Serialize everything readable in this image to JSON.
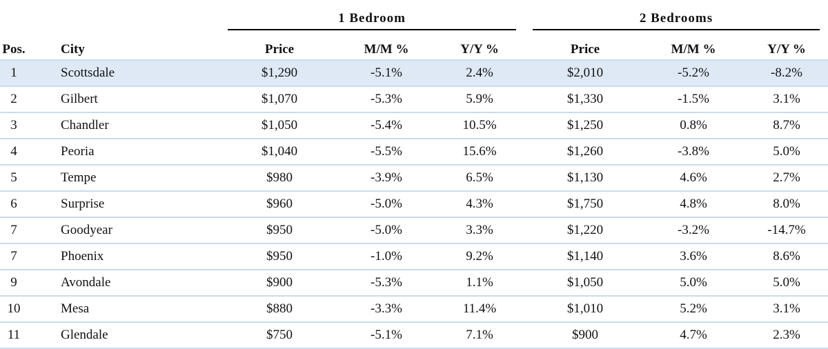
{
  "table": {
    "groups": [
      "1 Bedroom",
      "2 Bedrooms"
    ],
    "columns": [
      "Pos.",
      "City",
      "Price",
      "M/M %",
      "Y/Y %",
      "Price",
      "M/M %",
      "Y/Y %"
    ],
    "rows": [
      [
        "1",
        "Scottsdale",
        "$1,290",
        "-5.1%",
        "2.4%",
        "$2,010",
        "-5.2%",
        "-8.2%"
      ],
      [
        "2",
        "Gilbert",
        "$1,070",
        "-5.3%",
        "5.9%",
        "$1,330",
        "-1.5%",
        "3.1%"
      ],
      [
        "3",
        "Chandler",
        "$1,050",
        "-5.4%",
        "10.5%",
        "$1,250",
        "0.8%",
        "8.7%"
      ],
      [
        "4",
        "Peoria",
        "$1,040",
        "-5.5%",
        "15.6%",
        "$1,260",
        "-3.8%",
        "5.0%"
      ],
      [
        "5",
        "Tempe",
        "$980",
        "-3.9%",
        "6.5%",
        "$1,130",
        "4.6%",
        "2.7%"
      ],
      [
        "6",
        "Surprise",
        "$960",
        "-5.0%",
        "4.3%",
        "$1,750",
        "4.8%",
        "8.0%"
      ],
      [
        "7",
        "Goodyear",
        "$950",
        "-5.0%",
        "3.3%",
        "$1,220",
        "-3.2%",
        "-14.7%"
      ],
      [
        "7",
        "Phoenix",
        "$950",
        "-1.0%",
        "9.2%",
        "$1,140",
        "3.6%",
        "8.6%"
      ],
      [
        "9",
        "Avondale",
        "$900",
        "-5.3%",
        "1.1%",
        "$1,050",
        "5.0%",
        "5.0%"
      ],
      [
        "10",
        "Mesa",
        "$880",
        "-3.3%",
        "11.4%",
        "$1,010",
        "5.2%",
        "3.1%"
      ],
      [
        "11",
        "Glendale",
        "$750",
        "-5.1%",
        "7.1%",
        "$900",
        "4.7%",
        "2.3%"
      ]
    ]
  }
}
